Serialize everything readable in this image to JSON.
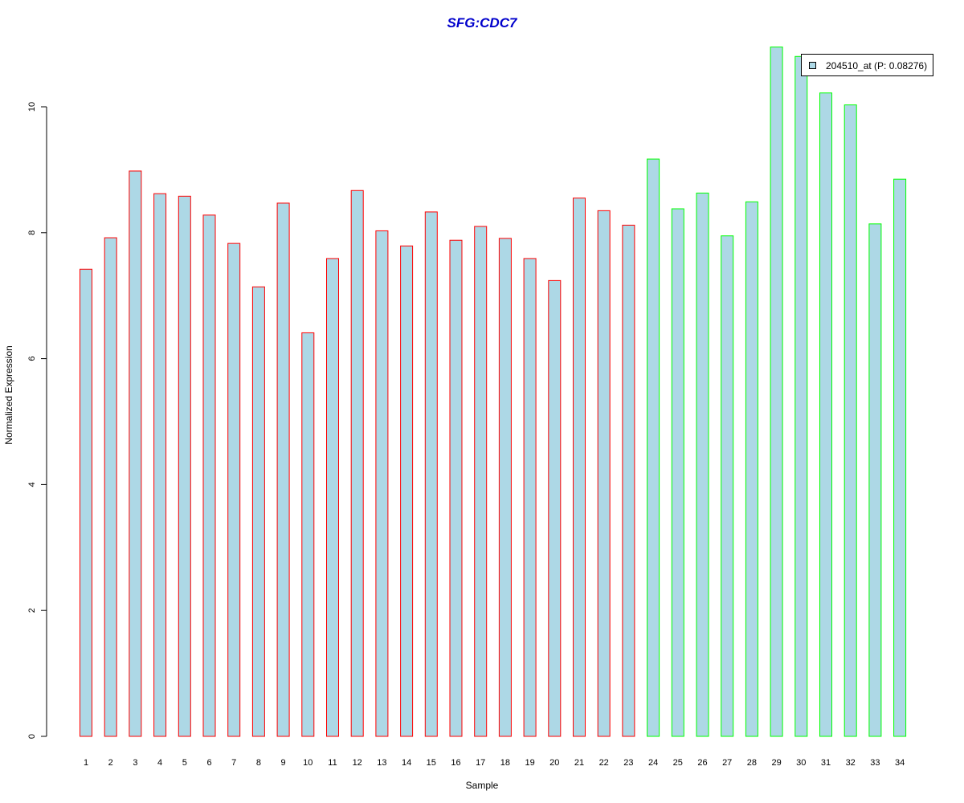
{
  "chart_data": {
    "type": "bar",
    "title": "SFG:CDC7",
    "xlabel": "Sample",
    "ylabel": "Normalized Expression",
    "categories": [
      "1",
      "2",
      "3",
      "4",
      "5",
      "6",
      "7",
      "8",
      "9",
      "10",
      "11",
      "12",
      "13",
      "14",
      "15",
      "16",
      "17",
      "18",
      "19",
      "20",
      "21",
      "22",
      "23",
      "24",
      "25",
      "26",
      "27",
      "28",
      "29",
      "30",
      "31",
      "32",
      "33",
      "34"
    ],
    "series": [
      {
        "name": "204510_at (P: 0.08276)",
        "values": [
          7.42,
          7.92,
          8.98,
          8.62,
          8.58,
          8.28,
          7.83,
          7.14,
          8.47,
          6.41,
          7.59,
          8.67,
          8.03,
          7.79,
          8.33,
          7.88,
          8.1,
          7.91,
          7.59,
          7.24,
          8.55,
          8.35,
          8.12,
          9.17,
          8.38,
          8.63,
          7.95,
          8.49,
          10.95,
          10.8,
          10.22,
          10.03,
          8.14,
          8.85
        ]
      }
    ],
    "bar_fill": "#add8e6",
    "group_border_colors": {
      "samples_1_to_23": "#ff0000",
      "samples_24_to_34": "#00ff00"
    },
    "yticks": [
      0,
      2,
      4,
      6,
      8,
      10
    ],
    "ylim": [
      0,
      11
    ],
    "grid": false,
    "legend_position": "top-right"
  },
  "colors": {
    "title": "#0000cc",
    "fill": "#add8e6",
    "red": "#ff0000",
    "green": "#00ff00"
  }
}
